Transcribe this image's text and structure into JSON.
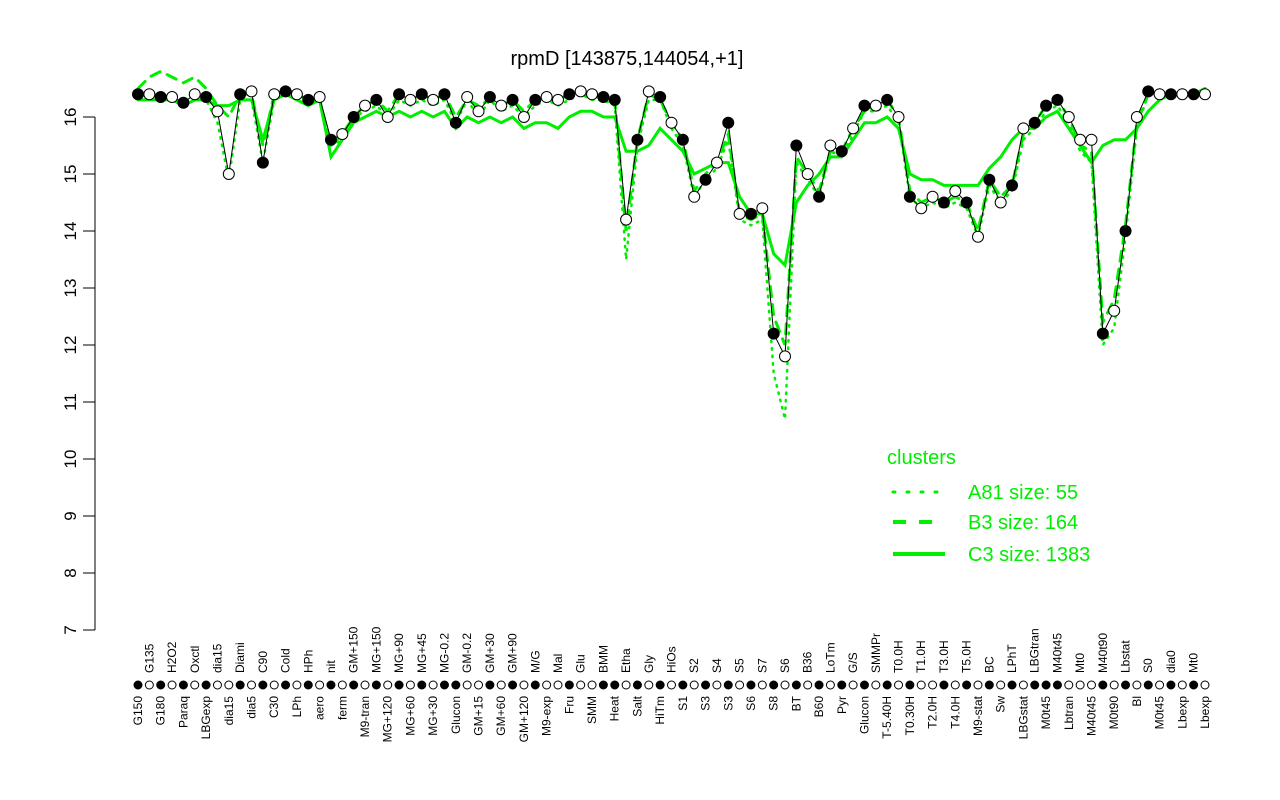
{
  "chart_data": {
    "type": "line",
    "title": "rpmD [143875,144054,+1]",
    "xlabel": "",
    "ylabel": "",
    "ylim": [
      7,
      16.6
    ],
    "yticks": [
      7,
      8,
      9,
      10,
      11,
      12,
      13,
      14,
      15,
      16
    ],
    "grid": false,
    "legend": {
      "title": "clusters",
      "placement": "bottom-right",
      "color": "#00ee00",
      "entries": [
        {
          "name": "A81 size: 55",
          "style": "dotted"
        },
        {
          "name": "B3 size: 164",
          "style": "dashed"
        },
        {
          "name": "C3 size: 1383",
          "style": "solid"
        }
      ]
    },
    "colors": {
      "clusters": "#00ee00",
      "points": "#000000"
    },
    "categories": [
      "G150",
      "G135",
      "G180",
      "H2O2",
      "Paraq",
      "Oxctl",
      "LBGexp",
      "dia15",
      "dia15",
      "Diami",
      "dia5",
      "C90",
      "C30",
      "Cold",
      "LPh",
      "HPh",
      "aero",
      "nit",
      "ferm",
      "GM+150",
      "M9-tran",
      "MG+150",
      "MG+120",
      "MG+90",
      "MG+60",
      "MG+45",
      "MG+30",
      "MG-0.2",
      "Glucon",
      "GM-0.2",
      "GM+15",
      "GM+30",
      "GM+60",
      "GM+90",
      "GM+120",
      "M/G",
      "M9-exp",
      "Mal",
      "Fru",
      "Glu",
      "SMM",
      "BMM",
      "Heat",
      "Etha",
      "Salt",
      "Gly",
      "HiTm",
      "HiOs",
      "S1",
      "S2",
      "S3",
      "S4",
      "S3",
      "S5",
      "S6",
      "S7",
      "S8",
      "S6",
      "BT",
      "B36",
      "B60",
      "LoTm",
      "Pyr",
      "G/S",
      "Glucon",
      "SMMPr",
      "T-5.40H",
      "T0.0H",
      "T0.30H",
      "T1.0H",
      "T2.0H",
      "T3.0H",
      "T4.0H",
      "T5.0H",
      "M9-stat",
      "BC",
      "Sw",
      "LPhT",
      "LBGstat",
      "LBGtran",
      "M0t45",
      "M40t45",
      "Lbtran",
      "Mt0",
      "M40t45",
      "M40t90",
      "M0t90",
      "Lbstat",
      "Bl",
      "S0",
      "M0t45",
      "dia0",
      "Lbexp",
      "Mt0",
      "Lbexp"
    ],
    "values": [
      16.4,
      16.4,
      16.35,
      16.35,
      16.25,
      16.4,
      16.35,
      16.1,
      15.0,
      16.4,
      16.45,
      15.2,
      16.4,
      16.45,
      16.4,
      16.3,
      16.35,
      15.6,
      15.7,
      16.0,
      16.2,
      16.3,
      16.0,
      16.4,
      16.3,
      16.4,
      16.3,
      16.4,
      15.9,
      16.35,
      16.1,
      16.35,
      16.2,
      16.3,
      16.0,
      16.3,
      16.35,
      16.3,
      16.4,
      16.45,
      16.4,
      16.35,
      16.3,
      14.2,
      15.6,
      16.45,
      16.35,
      15.9,
      15.6,
      14.6,
      14.9,
      15.2,
      15.9,
      14.3,
      14.3,
      14.4,
      12.2,
      11.8,
      15.5,
      15.0,
      14.6,
      15.5,
      15.4,
      15.8,
      16.2,
      16.2,
      16.3,
      16.0,
      14.6,
      14.4,
      14.6,
      14.5,
      14.7,
      14.5,
      13.9,
      14.9,
      14.5,
      14.8,
      15.8,
      15.9,
      16.2,
      16.3,
      16.0,
      15.6,
      15.6,
      12.2,
      12.6,
      14.0,
      16.0,
      16.45,
      16.4,
      16.4,
      16.4,
      16.4,
      16.4
    ],
    "filled": [
      true,
      false,
      true,
      false,
      true,
      false,
      true,
      false,
      false,
      true,
      false,
      true,
      false,
      true,
      false,
      true,
      false,
      true,
      false,
      true,
      false,
      true,
      false,
      true,
      false,
      true,
      false,
      true,
      true,
      false,
      false,
      true,
      false,
      true,
      false,
      true,
      false,
      false,
      true,
      false,
      false,
      true,
      true,
      false,
      true,
      false,
      true,
      false,
      true,
      false,
      true,
      false,
      true,
      false,
      true,
      false,
      true,
      false,
      true,
      false,
      true,
      false,
      true,
      false,
      true,
      false,
      true,
      false,
      true,
      false,
      false,
      true,
      false,
      true,
      false,
      true,
      false,
      true,
      false,
      true,
      true,
      true,
      false,
      false,
      false,
      true,
      false,
      true,
      false,
      true,
      false,
      true,
      false,
      true,
      false
    ],
    "series": [
      {
        "name": "C3",
        "style": "solid",
        "values": [
          16.3,
          16.3,
          16.3,
          16.3,
          16.2,
          16.3,
          16.3,
          16.2,
          16.2,
          16.3,
          16.3,
          15.6,
          16.3,
          16.4,
          16.3,
          16.2,
          16.3,
          15.3,
          15.6,
          15.9,
          16.0,
          16.1,
          16.0,
          16.1,
          16.0,
          16.1,
          16.0,
          16.1,
          15.8,
          16.0,
          15.9,
          16.0,
          15.9,
          16.0,
          15.8,
          15.9,
          15.9,
          15.8,
          16.0,
          16.1,
          16.1,
          16.0,
          16.0,
          15.4,
          15.4,
          15.5,
          15.8,
          15.6,
          15.4,
          15.0,
          15.1,
          15.2,
          15.2,
          14.6,
          14.3,
          14.3,
          13.6,
          13.4,
          14.5,
          14.8,
          15.0,
          15.3,
          15.3,
          15.6,
          15.9,
          15.9,
          16.0,
          15.8,
          15.0,
          14.9,
          14.9,
          14.8,
          14.8,
          14.8,
          14.8,
          15.1,
          15.3,
          15.6,
          15.8,
          15.8,
          16.0,
          16.1,
          15.8,
          15.5,
          15.2,
          15.5,
          15.6,
          15.6,
          15.8,
          16.1,
          16.3,
          16.4,
          16.4,
          16.4,
          16.5
        ]
      },
      {
        "name": "B3",
        "style": "dashed",
        "values": [
          16.5,
          16.7,
          16.8,
          16.7,
          16.6,
          16.7,
          16.5,
          16.2,
          16.0,
          16.4,
          16.4,
          15.5,
          16.4,
          16.5,
          16.4,
          16.3,
          16.3,
          15.5,
          15.7,
          16.0,
          16.2,
          16.3,
          16.1,
          16.4,
          16.3,
          16.4,
          16.3,
          16.4,
          16.0,
          16.3,
          16.2,
          16.3,
          16.2,
          16.3,
          16.1,
          16.3,
          16.3,
          16.3,
          16.4,
          16.4,
          16.4,
          16.3,
          16.3,
          14.0,
          15.6,
          16.4,
          16.3,
          15.9,
          15.6,
          14.7,
          15.0,
          15.2,
          15.7,
          14.3,
          14.2,
          14.3,
          12.5,
          12.0,
          15.3,
          15.0,
          14.7,
          15.4,
          15.4,
          15.8,
          16.1,
          16.2,
          16.3,
          16.0,
          14.7,
          14.5,
          14.6,
          14.5,
          14.6,
          14.5,
          14.0,
          14.9,
          14.6,
          14.8,
          15.7,
          15.9,
          16.2,
          16.3,
          16.0,
          15.5,
          15.4,
          12.4,
          12.8,
          14.1,
          15.9,
          16.4,
          16.4,
          16.4,
          16.4,
          16.4,
          16.4
        ]
      },
      {
        "name": "A81",
        "style": "dotted",
        "values": [
          16.4,
          16.4,
          16.4,
          16.3,
          16.2,
          16.3,
          16.3,
          15.9,
          14.9,
          16.3,
          16.3,
          15.2,
          16.3,
          16.4,
          16.3,
          16.2,
          16.3,
          15.5,
          15.6,
          16.0,
          16.1,
          16.2,
          16.0,
          16.3,
          16.2,
          16.3,
          16.2,
          16.3,
          15.9,
          16.3,
          16.0,
          16.3,
          16.1,
          16.2,
          16.0,
          16.2,
          16.3,
          16.2,
          16.3,
          16.4,
          16.3,
          16.3,
          16.2,
          13.5,
          15.5,
          16.3,
          16.3,
          15.8,
          15.5,
          14.6,
          14.9,
          15.1,
          15.6,
          14.2,
          14.1,
          14.2,
          11.5,
          10.7,
          15.2,
          14.9,
          14.6,
          15.4,
          15.3,
          15.7,
          16.1,
          16.1,
          16.2,
          15.9,
          14.6,
          14.4,
          14.5,
          14.4,
          14.5,
          14.4,
          13.9,
          14.8,
          14.5,
          14.7,
          15.6,
          15.8,
          16.1,
          16.2,
          15.9,
          15.4,
          15.2,
          12.0,
          12.3,
          13.9,
          15.8,
          16.4,
          16.4,
          16.4,
          16.4,
          16.4,
          16.5
        ]
      }
    ]
  }
}
